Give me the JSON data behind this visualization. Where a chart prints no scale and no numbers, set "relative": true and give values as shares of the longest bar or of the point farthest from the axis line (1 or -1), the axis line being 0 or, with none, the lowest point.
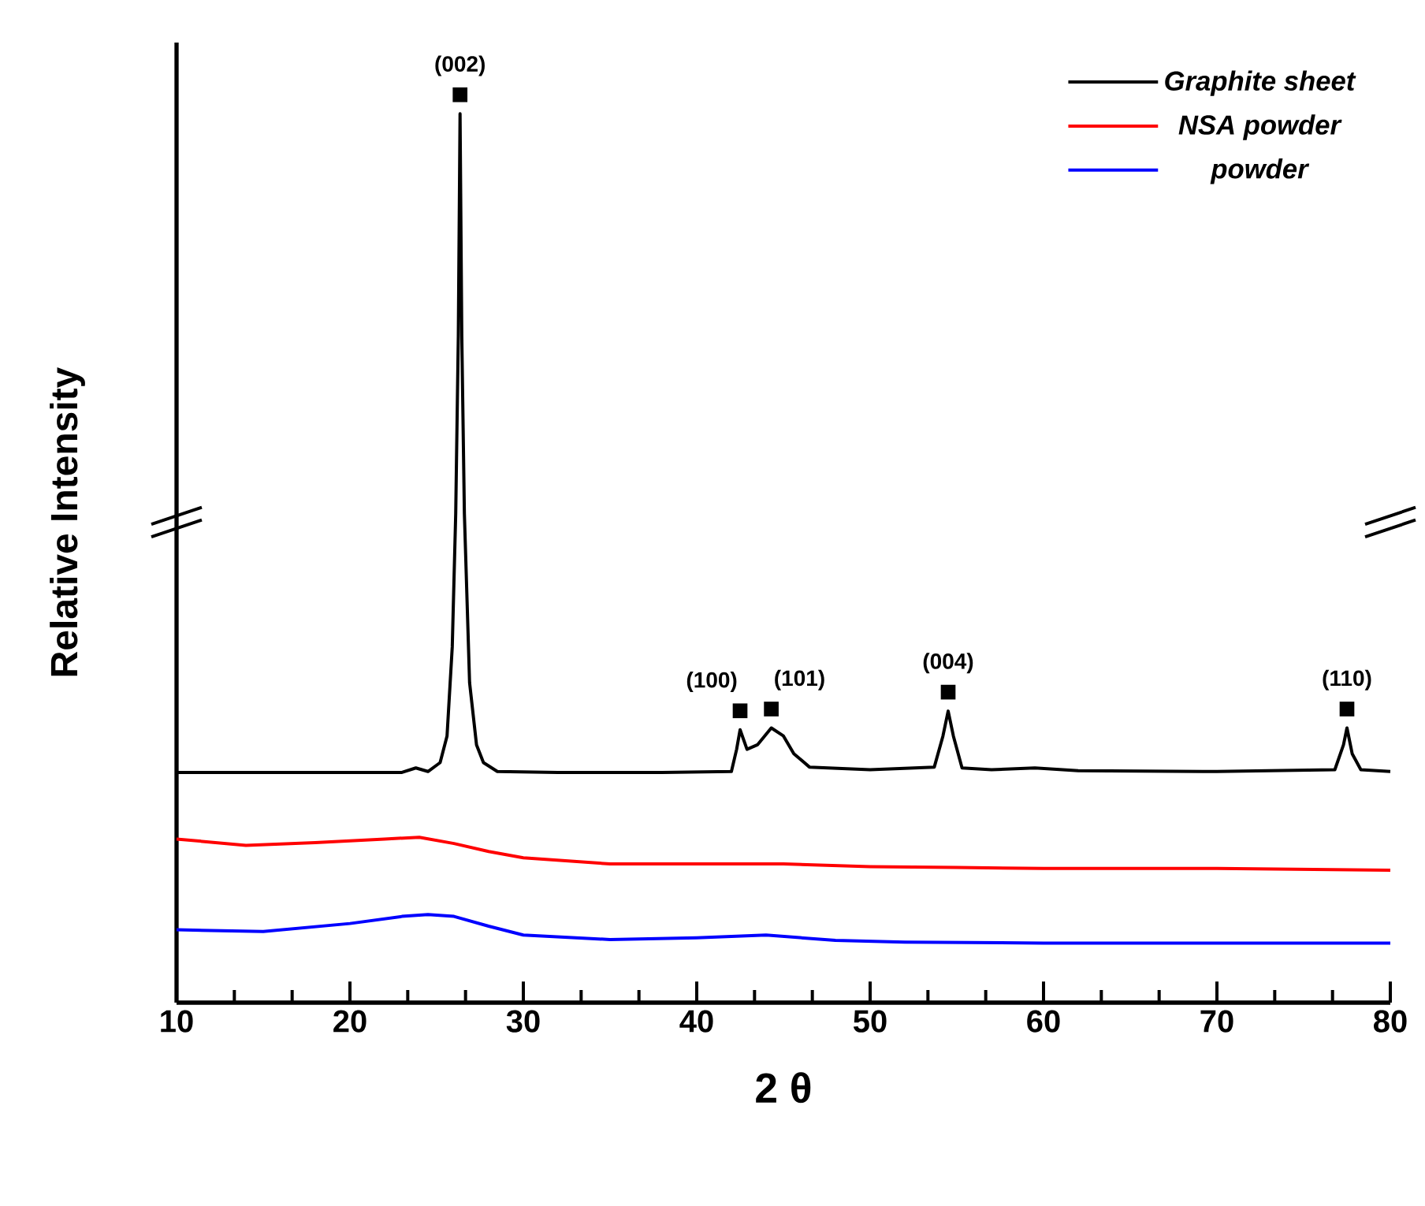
{
  "chart_data": {
    "type": "line",
    "relative": true,
    "xlabel": "2 θ",
    "ylabel": "Relative Intensity",
    "xlim": [
      10,
      80
    ],
    "xticks": [
      10,
      20,
      30,
      40,
      50,
      60,
      70,
      80
    ],
    "tick_labels": "x",
    "legend": "top right",
    "marker": "none",
    "line_style": "solid",
    "grid": false,
    "series": [
      {
        "name": "Graphite sheet",
        "color": "#000000",
        "x": [
          10,
          15,
          20,
          23,
          23.8,
          24.5,
          25.2,
          25.6,
          25.9,
          26.1,
          26.25,
          26.35,
          26.45,
          26.6,
          26.9,
          27.3,
          27.7,
          28.5,
          32,
          38,
          42,
          42.3,
          42.5,
          42.9,
          43.5,
          44.3,
          45,
          45.6,
          46.5,
          50,
          53.7,
          54.2,
          54.5,
          54.8,
          55.3,
          57,
          59.5,
          62,
          70,
          76.8,
          77.3,
          77.5,
          77.8,
          78.3,
          80
        ],
        "values": [
          0.259,
          0.259,
          0.259,
          0.259,
          0.264,
          0.26,
          0.27,
          0.3,
          0.4,
          0.55,
          0.75,
          1.0,
          0.75,
          0.55,
          0.36,
          0.29,
          0.27,
          0.26,
          0.259,
          0.259,
          0.26,
          0.285,
          0.307,
          0.285,
          0.29,
          0.309,
          0.3,
          0.28,
          0.265,
          0.262,
          0.265,
          0.3,
          0.328,
          0.3,
          0.264,
          0.262,
          0.264,
          0.261,
          0.26,
          0.262,
          0.29,
          0.309,
          0.28,
          0.262,
          0.26
        ]
      },
      {
        "name": "NSA powder",
        "color": "#ff0000",
        "x": [
          10,
          14,
          18,
          22,
          24,
          26,
          28,
          30,
          35,
          40,
          45,
          50,
          55,
          60,
          70,
          80
        ],
        "values": [
          0.184,
          0.177,
          0.18,
          0.184,
          0.186,
          0.179,
          0.17,
          0.163,
          0.156,
          0.156,
          0.156,
          0.153,
          0.152,
          0.151,
          0.151,
          0.149
        ]
      },
      {
        "name": "powder",
        "color": "#0000ff",
        "x": [
          10,
          15,
          20,
          23,
          24.5,
          26,
          28,
          30,
          35,
          40,
          44,
          48,
          52,
          60,
          70,
          80
        ],
        "values": [
          0.082,
          0.08,
          0.089,
          0.097,
          0.099,
          0.097,
          0.086,
          0.076,
          0.071,
          0.073,
          0.076,
          0.07,
          0.068,
          0.067,
          0.067,
          0.067
        ]
      }
    ],
    "annotations": [
      {
        "text": "(002)",
        "x": 26.35,
        "y": 1.0
      },
      {
        "text": "(100)",
        "x": 42.5,
        "y": 0.307
      },
      {
        "text": "(101)",
        "x": 44.3,
        "y": 0.309
      },
      {
        "text": "(004)",
        "x": 54.5,
        "y": 0.328
      },
      {
        "text": "(110)",
        "x": 77.5,
        "y": 0.309
      }
    ]
  }
}
